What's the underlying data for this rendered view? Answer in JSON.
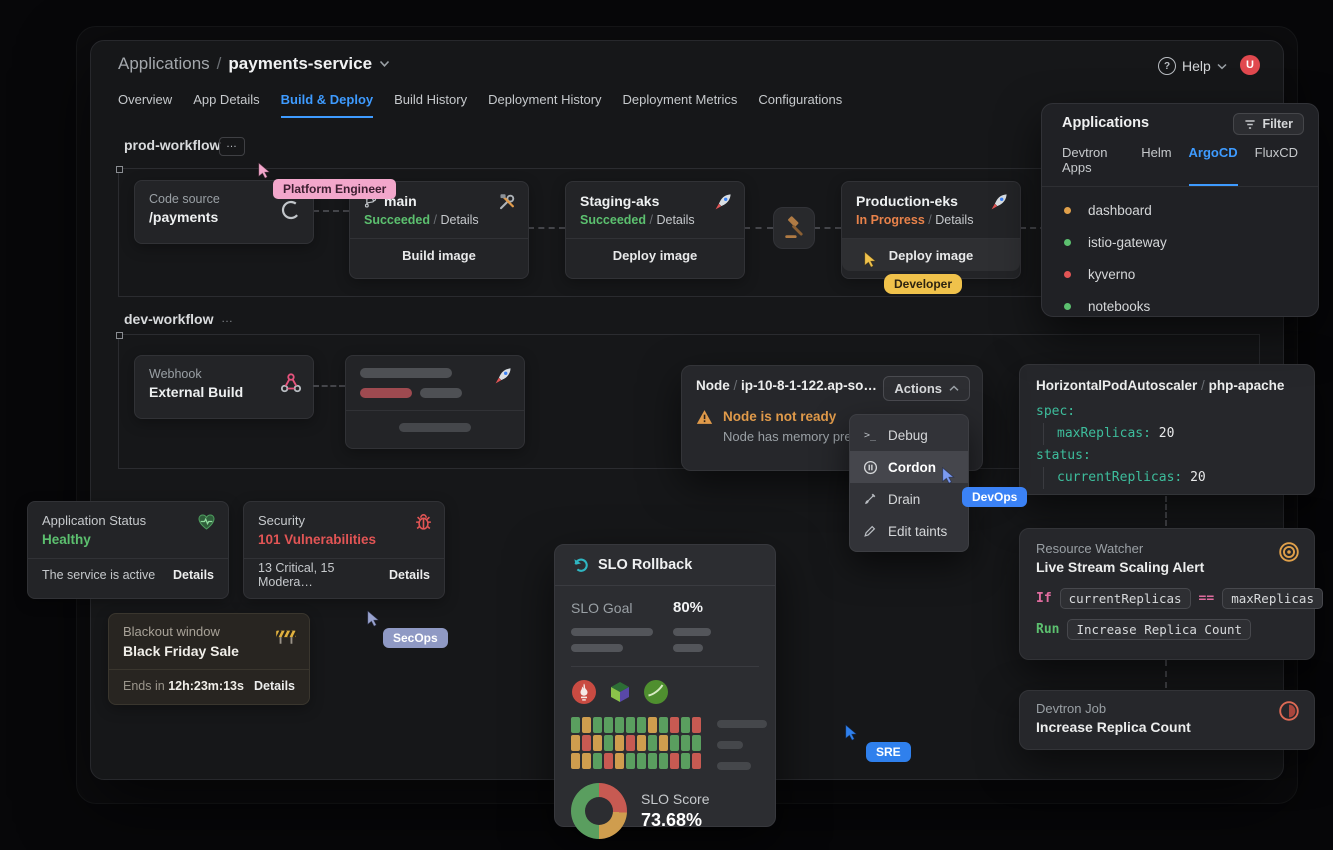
{
  "colors": {
    "accent": "#3e9bff",
    "success": "#5cc06f",
    "warning": "#e8824a",
    "danger": "#e25555",
    "yaml_key": "#3dbd9c"
  },
  "window": {
    "breadcrumb": {
      "root": "Applications",
      "separator": "/",
      "current": "payments-service"
    },
    "help_label": "Help",
    "avatar_initial": "U",
    "tabs": [
      {
        "label": "Overview"
      },
      {
        "label": "App Details"
      },
      {
        "label": "Build & Deploy"
      },
      {
        "label": "Build History"
      },
      {
        "label": "Deployment History"
      },
      {
        "label": "Deployment Metrics"
      },
      {
        "label": "Configurations"
      }
    ],
    "active_tab": "Build & Deploy"
  },
  "prod_workflow": {
    "title": "prod-workflow",
    "code_source": {
      "label": "Code source",
      "value": "/payments"
    },
    "build": {
      "branch": "main",
      "status": "Succeeded",
      "separator": "/",
      "details_label": "Details",
      "action_label": "Build image"
    },
    "staging": {
      "title": "Staging-aks",
      "status": "Succeeded",
      "separator": "/",
      "details_label": "Details",
      "action_label": "Deploy image"
    },
    "production": {
      "title": "Production-eks",
      "status": "In Progress",
      "separator": "/",
      "details_label": "Details",
      "action_label": "Deploy image"
    }
  },
  "dev_workflow": {
    "title": "dev-workflow",
    "webhook": {
      "label": "Webhook",
      "value": "External Build"
    }
  },
  "apps_panel": {
    "title": "Applications",
    "filter_label": "Filter",
    "tabs": [
      {
        "label": "Devtron Apps"
      },
      {
        "label": "Helm"
      },
      {
        "label": "ArgoCD"
      },
      {
        "label": "FluxCD"
      }
    ],
    "active_tab": "ArgoCD",
    "items": [
      {
        "name": "dashboard",
        "status_color": "#e0a04a"
      },
      {
        "name": "istio-gateway",
        "status_color": "#5cc06f"
      },
      {
        "name": "kyverno",
        "status_color": "#e25555"
      },
      {
        "name": "notebooks",
        "status_color": "#5cc06f"
      }
    ]
  },
  "node_panel": {
    "resource": "Node",
    "separator": "/",
    "name": "ip-10-8-1-122.ap-so…",
    "actions_label": "Actions",
    "warning_title": "Node is not ready",
    "warning_detail": "Node has memory pre",
    "menu": [
      {
        "label": "Debug"
      },
      {
        "label": "Cordon"
      },
      {
        "label": "Drain"
      },
      {
        "label": "Edit taints"
      }
    ],
    "active_menu_item": "Cordon"
  },
  "hpa_panel": {
    "resource": "HorizontalPodAutoscaler",
    "separator": "/",
    "name": "php-apache",
    "yaml": {
      "spec_key": "spec:",
      "max_key": "maxReplicas:",
      "max_val": "20",
      "status_key": "status:",
      "current_key": "currentReplicas:",
      "current_val": "20"
    }
  },
  "status_card": {
    "title": "Application Status",
    "value": "Healthy",
    "footer": "The service is active",
    "details_label": "Details"
  },
  "security_card": {
    "title": "Security",
    "value": "101 Vulnerabilities",
    "footer": "13 Critical, 15 Modera…",
    "details_label": "Details"
  },
  "blackout_card": {
    "title": "Blackout window",
    "value": "Black Friday Sale",
    "footer_prefix": "Ends in",
    "countdown": "12h:23m:13s",
    "details_label": "Details"
  },
  "slo_panel": {
    "title": "SLO Rollback",
    "goal_label": "SLO Goal",
    "goal_value": "80%",
    "score_label": "SLO Score",
    "score_value": "73.68%",
    "cell_colors": {
      "g": "#5a9e5f",
      "o": "#cf9d4e",
      "r": "#c75a52"
    },
    "grid": [
      [
        "g",
        "o",
        "g",
        "g",
        "g",
        "g",
        "g",
        "o",
        "g",
        "r",
        "g",
        "r"
      ],
      [
        "o",
        "r",
        "o",
        "g",
        "o",
        "r",
        "o",
        "g",
        "o",
        "g",
        "g",
        "g"
      ],
      [
        "o",
        "o",
        "g",
        "r",
        "o",
        "g",
        "g",
        "g",
        "g",
        "r",
        "g",
        "r"
      ]
    ],
    "donut": [
      {
        "color": "#c75a52",
        "pct": 26
      },
      {
        "color": "#cf9d4e",
        "pct": 24
      },
      {
        "color": "#5a9e5f",
        "pct": 50
      }
    ]
  },
  "watcher_panel": {
    "title": "Resource Watcher",
    "subtitle": "Live Stream Scaling Alert",
    "if_keyword": "If",
    "condition_left": "currentReplicas",
    "operator": "==",
    "condition_right": "maxReplicas",
    "run_keyword": "Run",
    "action": "Increase Replica Count"
  },
  "job_panel": {
    "title": "Devtron Job",
    "value": "Increase Replica Count"
  },
  "cursors": {
    "platform_engineer": {
      "label": "Platform Engineer"
    },
    "developer": {
      "label": "Developer"
    },
    "devops": {
      "label": "DevOps"
    },
    "secops": {
      "label": "SecOps"
    },
    "sre": {
      "label": "SRE"
    }
  }
}
